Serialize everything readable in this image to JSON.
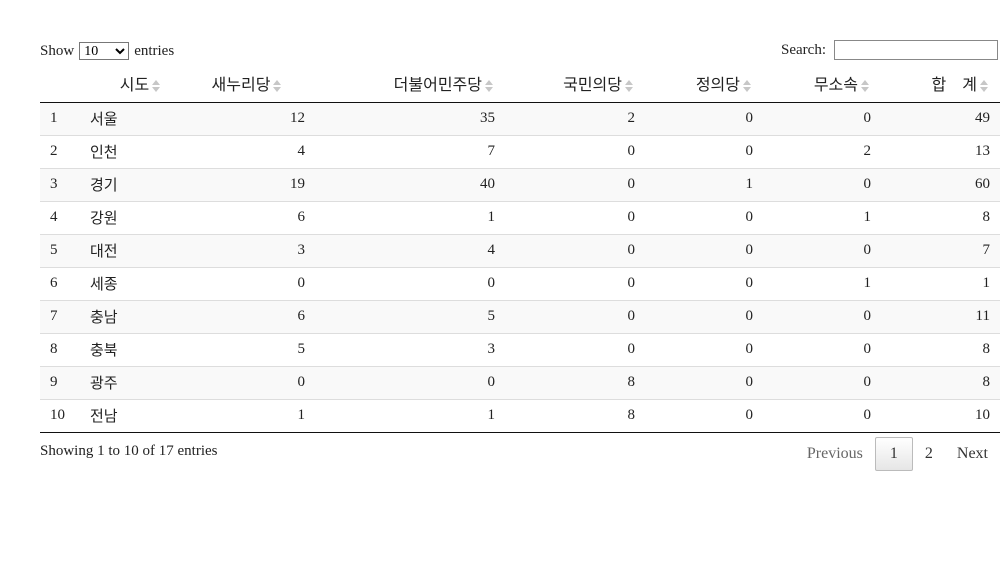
{
  "controls": {
    "show_label": "Show",
    "length_value": "10",
    "entries_label": "entries",
    "search_label": "Search:",
    "search_value": ""
  },
  "table": {
    "headers": [
      "",
      "시도",
      "새누리당",
      "더불어민주당",
      "국민의당",
      "정의당",
      "무소속",
      "합　계"
    ],
    "rows": [
      [
        "1",
        "서울",
        "12",
        "35",
        "2",
        "0",
        "0",
        "49"
      ],
      [
        "2",
        "인천",
        "4",
        "7",
        "0",
        "0",
        "2",
        "13"
      ],
      [
        "3",
        "경기",
        "19",
        "40",
        "0",
        "1",
        "0",
        "60"
      ],
      [
        "4",
        "강원",
        "6",
        "1",
        "0",
        "0",
        "1",
        "8"
      ],
      [
        "5",
        "대전",
        "3",
        "4",
        "0",
        "0",
        "0",
        "7"
      ],
      [
        "6",
        "세종",
        "0",
        "0",
        "0",
        "0",
        "1",
        "1"
      ],
      [
        "7",
        "충남",
        "6",
        "5",
        "0",
        "0",
        "0",
        "11"
      ],
      [
        "8",
        "충북",
        "5",
        "3",
        "0",
        "0",
        "0",
        "8"
      ],
      [
        "9",
        "광주",
        "0",
        "0",
        "8",
        "0",
        "0",
        "8"
      ],
      [
        "10",
        "전남",
        "1",
        "1",
        "8",
        "0",
        "0",
        "10"
      ]
    ]
  },
  "footer": {
    "info": "Showing 1 to 10 of 17 entries",
    "previous": "Previous",
    "pages": [
      "1",
      "2"
    ],
    "current_page": "1",
    "next": "Next"
  }
}
